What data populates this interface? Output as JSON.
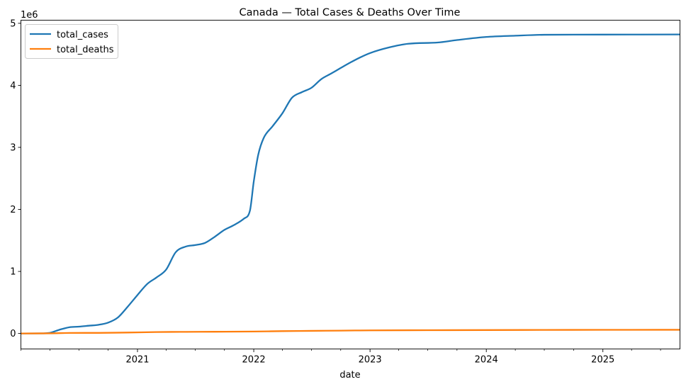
{
  "chart_data": {
    "type": "line",
    "title": "Canada — Total Cases & Deaths Over Time",
    "xlabel": "date",
    "ylabel": "",
    "y_offset_label": "1e6",
    "ylim": [
      -250000,
      5050000
    ],
    "xlim": [
      "2020-01-01",
      "2025-08-31"
    ],
    "y_ticks": [
      0,
      1000000,
      2000000,
      3000000,
      4000000,
      5000000
    ],
    "y_tick_labels": [
      "0",
      "1",
      "2",
      "3",
      "4",
      "5"
    ],
    "x_ticks": [
      "2021-01-01",
      "2022-01-01",
      "2023-01-01",
      "2024-01-01",
      "2025-01-01"
    ],
    "x_tick_labels": [
      "2021",
      "2022",
      "2023",
      "2024",
      "2025"
    ],
    "x_minor_ticks": [
      "2020-01-01",
      "2020-04-01",
      "2020-07-01",
      "2020-10-01",
      "2021-04-01",
      "2021-07-01",
      "2021-10-01",
      "2022-04-01",
      "2022-07-01",
      "2022-10-01",
      "2023-04-01",
      "2023-07-01",
      "2023-10-01",
      "2024-04-01",
      "2024-07-01",
      "2024-10-01",
      "2025-04-01",
      "2025-07-01"
    ],
    "grid": false,
    "legend_position": "top-left",
    "series": [
      {
        "name": "total_cases",
        "color": "#1f77b4",
        "points": [
          [
            "2020-01-01",
            0
          ],
          [
            "2020-03-01",
            1000
          ],
          [
            "2020-04-01",
            10000
          ],
          [
            "2020-05-01",
            60000
          ],
          [
            "2020-06-01",
            100000
          ],
          [
            "2020-07-01",
            110000
          ],
          [
            "2020-08-01",
            125000
          ],
          [
            "2020-09-01",
            140000
          ],
          [
            "2020-10-01",
            175000
          ],
          [
            "2020-11-01",
            260000
          ],
          [
            "2020-12-01",
            430000
          ],
          [
            "2021-01-01",
            620000
          ],
          [
            "2021-02-01",
            800000
          ],
          [
            "2021-03-01",
            900000
          ],
          [
            "2021-04-01",
            1030000
          ],
          [
            "2021-05-01",
            1310000
          ],
          [
            "2021-06-01",
            1400000
          ],
          [
            "2021-07-01",
            1425000
          ],
          [
            "2021-08-01",
            1460000
          ],
          [
            "2021-09-01",
            1560000
          ],
          [
            "2021-10-01",
            1670000
          ],
          [
            "2021-11-01",
            1750000
          ],
          [
            "2021-12-01",
            1850000
          ],
          [
            "2021-12-20",
            1980000
          ],
          [
            "2022-01-01",
            2450000
          ],
          [
            "2022-01-15",
            2880000
          ],
          [
            "2022-02-01",
            3150000
          ],
          [
            "2022-03-01",
            3340000
          ],
          [
            "2022-04-01",
            3550000
          ],
          [
            "2022-05-01",
            3800000
          ],
          [
            "2022-06-01",
            3890000
          ],
          [
            "2022-07-01",
            3960000
          ],
          [
            "2022-08-01",
            4100000
          ],
          [
            "2022-09-01",
            4190000
          ],
          [
            "2022-10-01",
            4280000
          ],
          [
            "2022-11-01",
            4370000
          ],
          [
            "2022-12-01",
            4450000
          ],
          [
            "2023-01-01",
            4520000
          ],
          [
            "2023-03-01",
            4610000
          ],
          [
            "2023-05-01",
            4670000
          ],
          [
            "2023-08-01",
            4690000
          ],
          [
            "2023-10-01",
            4730000
          ],
          [
            "2024-01-01",
            4780000
          ],
          [
            "2024-04-01",
            4800000
          ],
          [
            "2024-07-01",
            4815000
          ],
          [
            "2025-01-01",
            4818000
          ],
          [
            "2025-08-31",
            4820000
          ]
        ]
      },
      {
        "name": "total_deaths",
        "color": "#ff7f0e",
        "points": [
          [
            "2020-01-01",
            0
          ],
          [
            "2020-04-01",
            2000
          ],
          [
            "2020-06-01",
            8500
          ],
          [
            "2020-09-01",
            9300
          ],
          [
            "2020-12-01",
            15000
          ],
          [
            "2021-03-01",
            22500
          ],
          [
            "2021-06-01",
            26000
          ],
          [
            "2021-09-01",
            27800
          ],
          [
            "2022-01-01",
            31000
          ],
          [
            "2022-04-01",
            38000
          ],
          [
            "2022-07-01",
            42000
          ],
          [
            "2022-10-01",
            46000
          ],
          [
            "2023-01-01",
            50000
          ],
          [
            "2023-07-01",
            52500
          ],
          [
            "2024-01-01",
            55000
          ],
          [
            "2024-07-01",
            57000
          ],
          [
            "2025-01-01",
            58500
          ],
          [
            "2025-08-31",
            59000
          ]
        ]
      }
    ]
  }
}
